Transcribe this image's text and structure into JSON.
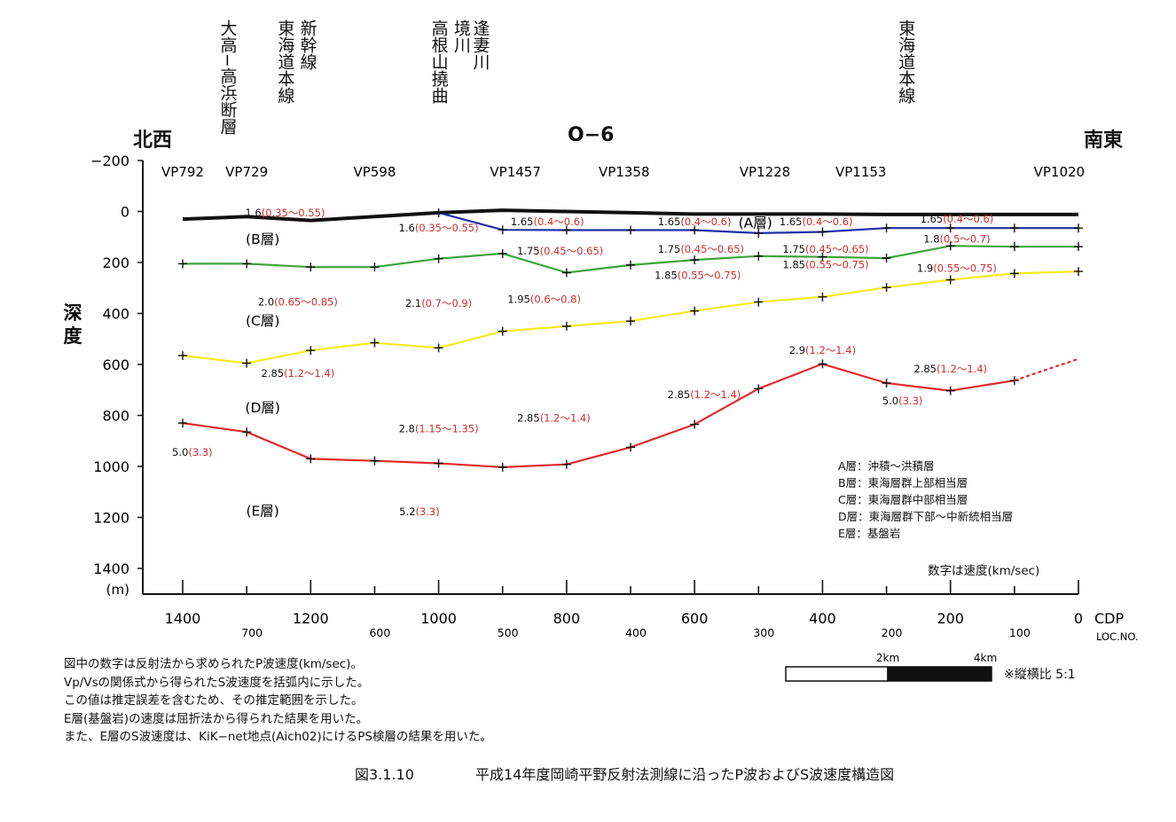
{
  "section_title": "O−6",
  "left_direction": "北西",
  "right_direction": "南東",
  "features": [
    {
      "text": "大高−高浜断層",
      "cdp": 1330
    },
    {
      "text": "東海道本線",
      "cdp": 1240
    },
    {
      "text": "新幹線",
      "cdp": 1205
    },
    {
      "text": "高根山撓曲",
      "cdp": 1000
    },
    {
      "text": "境川",
      "cdp": 965
    },
    {
      "text": "逢妻川",
      "cdp": 935
    },
    {
      "text": "東海道本線",
      "cdp": 270
    }
  ],
  "y_axis": {
    "title": "深度",
    "unit": "(m)",
    "ticks": [
      "−200",
      "0",
      "200",
      "400",
      "600",
      "800",
      "1000",
      "1200",
      "1400"
    ]
  },
  "x_axis": {
    "label": "CDP",
    "sub_label": "LOC.NO.",
    "ticks": [
      "1400",
      "1200",
      "1000",
      "800",
      "600",
      "400",
      "200",
      "0"
    ],
    "loc_ticks": [
      "700",
      "600",
      "500",
      "400",
      "300",
      "200",
      "100"
    ]
  },
  "vp_labels": [
    {
      "text": "VP792",
      "cdp": 1400
    },
    {
      "text": "VP729",
      "cdp": 1300
    },
    {
      "text": "VP598",
      "cdp": 1100
    },
    {
      "text": "VP1457",
      "cdp": 880
    },
    {
      "text": "VP1358",
      "cdp": 710
    },
    {
      "text": "VP1228",
      "cdp": 490
    },
    {
      "text": "VP1153",
      "cdp": 340
    },
    {
      "text": "VP1020",
      "cdp": 30
    }
  ],
  "chart_data": {
    "type": "line",
    "x_unit": "CDP",
    "xlim": [
      1400,
      0
    ],
    "ylim": [
      -200,
      1400
    ],
    "y_reversed": true,
    "series": [
      {
        "name": "Surface",
        "color": "#111111",
        "x": [
          1400,
          1300,
          1200,
          1100,
          1000,
          900,
          800,
          700,
          600,
          500,
          400,
          300,
          200,
          100,
          0
        ],
        "y": [
          30,
          20,
          35,
          20,
          5,
          -5,
          0,
          5,
          10,
          10,
          10,
          12,
          12,
          12,
          12
        ]
      },
      {
        "name": "A層 base",
        "color": "#1f2fa8",
        "x": [
          1000,
          900,
          800,
          700,
          600,
          500,
          400,
          300,
          200,
          100,
          0
        ],
        "y": [
          5,
          72,
          73,
          73,
          73,
          85,
          80,
          65,
          65,
          65,
          65
        ]
      },
      {
        "name": "B層 base",
        "color": "#3fa33a",
        "x": [
          1400,
          1300,
          1200,
          1100,
          1000,
          900,
          800,
          700,
          600,
          500,
          400,
          300,
          200,
          100,
          0
        ],
        "y": [
          205,
          205,
          218,
          218,
          185,
          165,
          240,
          210,
          190,
          175,
          178,
          183,
          135,
          138,
          138
        ]
      },
      {
        "name": "C層 base",
        "color": "#f5ea1a",
        "x": [
          1400,
          1300,
          1200,
          1100,
          1000,
          900,
          800,
          700,
          600,
          500,
          400,
          300,
          200,
          100,
          0
        ],
        "y": [
          565,
          595,
          545,
          515,
          535,
          470,
          450,
          430,
          390,
          355,
          335,
          298,
          268,
          243,
          235
        ]
      },
      {
        "name": "D層 base",
        "color": "#e02a2a",
        "x": [
          1400,
          1300,
          1200,
          1100,
          1000,
          900,
          800,
          700,
          600,
          500,
          400,
          300,
          200,
          100
        ],
        "y": [
          830,
          865,
          970,
          978,
          988,
          1003,
          992,
          925,
          835,
          695,
          598,
          673,
          703,
          663
        ],
        "dashed_extension": {
          "x": [
            100,
            0
          ],
          "y": [
            663,
            578
          ]
        }
      }
    ],
    "velocity_labels": [
      {
        "vp": "1.6",
        "vs": "(0.35〜0.55)",
        "x": 1240,
        "y": 5
      },
      {
        "vp": "1.6",
        "vs": "(0.35〜0.55)",
        "x": 1000,
        "y": 65
      },
      {
        "vp": "1.65",
        "vs": "(0.4〜0.6)",
        "x": 830,
        "y": 40
      },
      {
        "vp": "1.65",
        "vs": "(0.4〜0.6)",
        "x": 600,
        "y": 40
      },
      {
        "vp": "1.65",
        "vs": "(0.4〜0.6)",
        "x": 410,
        "y": 40
      },
      {
        "vp": "1.65",
        "vs": "(0.4〜0.6)",
        "x": 190,
        "y": 30
      },
      {
        "vp": "1.75",
        "vs": "(0.45〜0.65)",
        "x": 810,
        "y": 155
      },
      {
        "vp": "1.75",
        "vs": "(0.45〜0.65)",
        "x": 590,
        "y": 148
      },
      {
        "vp": "1.75",
        "vs": "(0.45〜0.65)",
        "x": 395,
        "y": 148
      },
      {
        "vp": "1.8",
        "vs": "(0.5〜0.7)",
        "x": 190,
        "y": 108
      },
      {
        "vp": "1.9",
        "vs": "(0.55〜0.75)",
        "x": 190,
        "y": 222
      },
      {
        "vp": "1.85",
        "vs": "(0.55〜0.75)",
        "x": 595,
        "y": 250
      },
      {
        "vp": "1.85",
        "vs": "(0.55〜0.75)",
        "x": 395,
        "y": 208
      },
      {
        "vp": "2.0",
        "vs": "(0.65〜0.85)",
        "x": 1220,
        "y": 355
      },
      {
        "vp": "2.1",
        "vs": "(0.7〜0.9)",
        "x": 1000,
        "y": 360
      },
      {
        "vp": "1.95",
        "vs": "(0.6〜0.8)",
        "x": 835,
        "y": 345
      },
      {
        "vp": "2.85",
        "vs": "(1.2〜1.4)",
        "x": 1220,
        "y": 635
      },
      {
        "vp": "2.9",
        "vs": "(1.2〜1.4)",
        "x": 400,
        "y": 545
      },
      {
        "vp": "2.85",
        "vs": "(1.2〜1.4)",
        "x": 200,
        "y": 617
      },
      {
        "vp": "2.85",
        "vs": "(1.2〜1.4)",
        "x": 585,
        "y": 718
      },
      {
        "vp": "5.0",
        "vs": "(3.3)",
        "x": 275,
        "y": 743
      },
      {
        "vp": "2.8",
        "vs": "(1.15〜1.35)",
        "x": 1000,
        "y": 853
      },
      {
        "vp": "2.85",
        "vs": "(1.2〜1.4)",
        "x": 820,
        "y": 810
      },
      {
        "vp": "5.0",
        "vs": "(3.3)",
        "x": 1385,
        "y": 945
      },
      {
        "vp": "5.2",
        "vs": "(3.3)",
        "x": 1030,
        "y": 1178
      }
    ],
    "layer_labels": [
      {
        "text": "(A層)",
        "x": 505,
        "y": 45
      },
      {
        "text": "(B層)",
        "x": 1275,
        "y": 110
      },
      {
        "text": "(C層)",
        "x": 1275,
        "y": 430
      },
      {
        "text": "(D層)",
        "x": 1275,
        "y": 770
      },
      {
        "text": "(E層)",
        "x": 1275,
        "y": 1175
      }
    ]
  },
  "legend_lines": [
    "A層：沖積〜洪積層",
    "B層：東海層群上部相当層",
    "C層：東海層群中部相当層",
    "D層：東海層群下部〜中新統相当層",
    "E層：基盤岩"
  ],
  "unit_note": "数字は速度(km/sec)",
  "scale_bar": {
    "label_2km": "2km",
    "label_4km": "4km",
    "ratio": "※縦横比  5:1"
  },
  "notes": [
    "図中の数字は反射法から求められたP波速度(km/sec)。",
    "Vp/Vsの関係式から得られたS波速度を括弧内に示した。",
    "この値は推定誤差を含むため、その推定範囲を示した。",
    "E層(基盤岩)の速度は屈折法から得られた結果を用いた。",
    "また、E層のS波速度は、KiK−net地点(Aich02)にけるPS検層の結果を用いた。"
  ],
  "caption": {
    "number": "図3.1.10",
    "title": "平成14年度岡崎平野反射法測線に沿ったP波およびS波速度構造図"
  }
}
